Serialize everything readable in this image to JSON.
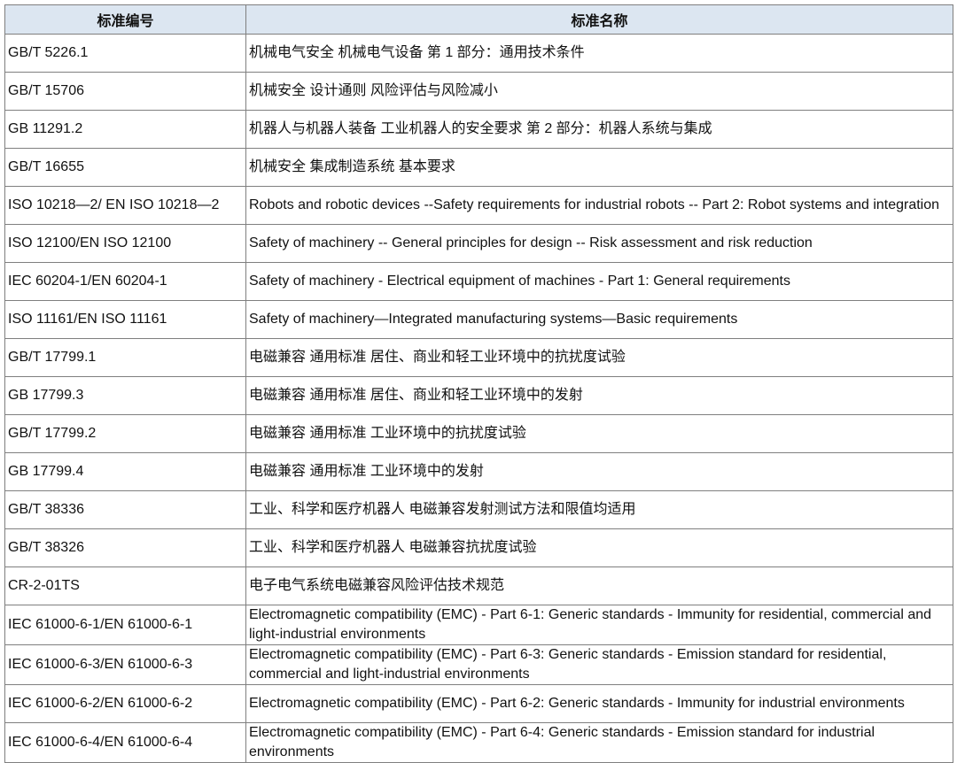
{
  "table": {
    "headers": [
      "标准编号",
      "标准名称"
    ],
    "rows": [
      {
        "code": "GB/T 5226.1",
        "name": "机械电气安全 机械电气设备 第 1 部分：通用技术条件"
      },
      {
        "code": "GB/T 15706",
        "name": "机械安全 设计通则 风险评估与风险减小"
      },
      {
        "code": "GB 11291.2",
        "name": "机器人与机器人装备 工业机器人的安全要求 第 2 部分：机器人系统与集成"
      },
      {
        "code": "GB/T 16655",
        "name": "机械安全 集成制造系统 基本要求"
      },
      {
        "code": "ISO 10218—2/ EN ISO 10218—2",
        "name": "Robots and robotic devices --Safety requirements for industrial robots -- Part 2: Robot systems and integration"
      },
      {
        "code": "ISO 12100/EN ISO 12100",
        "name": "Safety of machinery -- General principles for design -- Risk assessment and risk reduction"
      },
      {
        "code": "IEC 60204-1/EN 60204-1",
        "name": "Safety of machinery - Electrical equipment of machines - Part 1: General requirements"
      },
      {
        "code": "ISO 11161/EN ISO 11161",
        "name": "Safety of machinery—Integrated manufacturing systems—Basic requirements"
      },
      {
        "code": "GB/T 17799.1",
        "name": "电磁兼容 通用标准 居住、商业和轻工业环境中的抗扰度试验"
      },
      {
        "code": "GB 17799.3",
        "name": "电磁兼容 通用标准 居住、商业和轻工业环境中的发射"
      },
      {
        "code": "GB/T 17799.2",
        "name": "电磁兼容 通用标准 工业环境中的抗扰度试验"
      },
      {
        "code": "GB 17799.4",
        "name": "电磁兼容 通用标准 工业环境中的发射"
      },
      {
        "code": "GB/T 38336",
        "name": "工业、科学和医疗机器人 电磁兼容发射测试方法和限值均适用"
      },
      {
        "code": "GB/T 38326",
        "name": "工业、科学和医疗机器人 电磁兼容抗扰度试验"
      },
      {
        "code": "CR-2-01TS",
        "name": "电子电气系统电磁兼容风险评估技术规范"
      },
      {
        "code": "IEC 61000-6-1/EN 61000-6-1",
        "name": "Electromagnetic compatibility (EMC) - Part 6-1: Generic standards - Immunity for residential, commercial and light-industrial environments"
      },
      {
        "code": "IEC 61000-6-3/EN 61000-6-3",
        "name": "Electromagnetic compatibility (EMC) - Part 6-3: Generic standards - Emission standard for residential, commercial and light-industrial environments"
      },
      {
        "code": "IEC 61000-6-2/EN 61000-6-2",
        "name": "Electromagnetic compatibility (EMC) - Part 6-2: Generic standards - Immunity for industrial environments"
      },
      {
        "code": "IEC 61000-6-4/EN 61000-6-4",
        "name": "Electromagnetic compatibility (EMC) - Part 6-4: Generic standards - Emission standard for industrial environments"
      }
    ]
  },
  "colors": {
    "header_bg": "#dce6f1",
    "border": "#7f7f7f"
  }
}
